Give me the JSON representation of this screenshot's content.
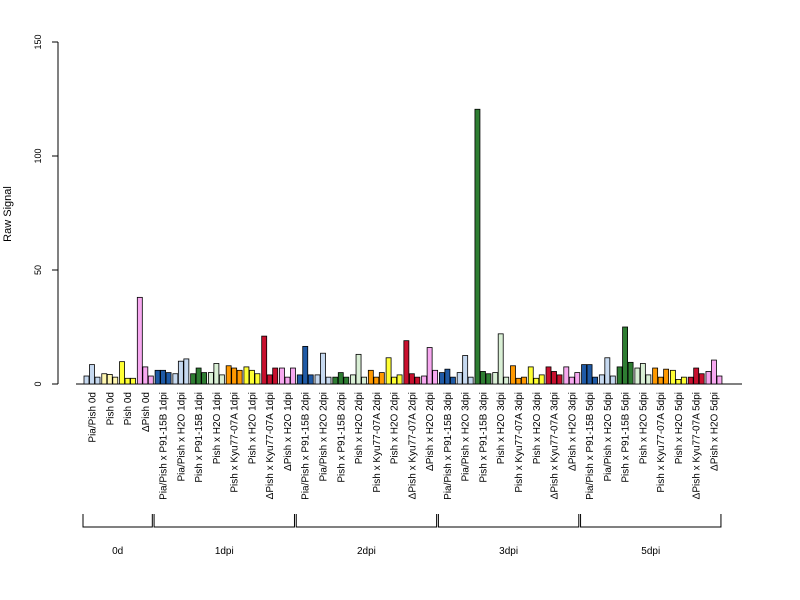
{
  "chart_data": {
    "type": "bar",
    "title": "",
    "xlabel": "",
    "ylabel": "Raw Signal",
    "ylim": [
      0,
      150
    ],
    "yticks": [
      0,
      50,
      100,
      150
    ],
    "grid": false,
    "categories": [
      "Pia/Pish 0d",
      "Pish 0d",
      "Pish 0d",
      "ΔPish 0d",
      "Pia/Pish x P91-15B 1dpi",
      "Pia/Pish x H2O 1dpi",
      "Pish x P91-15B 1dpi",
      "Pish x H2O 1dpi",
      "Pish x Kyu77-07A 1dpi",
      "Pish x H2O 1dpi",
      "ΔPish x Kyu77-07A 1dpi",
      "ΔPish x H2O 1dpi",
      "Pia/Pish x P91-15B 2dpi",
      "Pia/Pish x H2O 2dpi",
      "Pish x P91-15B 2dpi",
      "Pish x H2O 2dpi",
      "Pish x Kyu77-07A 2dpi",
      "Pish x H2O 2dpi",
      "ΔPish x Kyu77-07A 2dpi",
      "ΔPish x H2O 2dpi",
      "Pia/Pish x P91-15B 3dpi",
      "Pia/Pish x H2O 3dpi",
      "Pish x P91-15B 3dpi",
      "Pish x H2O 3dpi",
      "Pish x Kyu77-07A 3dpi",
      "Pish x H2O 3dpi",
      "ΔPish x Kyu77-07A 3dpi",
      "ΔPish x H2O 3dpi",
      "Pia/Pish x P91-15B 5dpi",
      "Pia/Pish x H2O 5dpi",
      "Pish x P91-15B 5dpi",
      "Pish x H2O 5dpi",
      "Pish x Kyu77-07A 5dpi",
      "Pish x H2O 5dpi",
      "ΔPish x Kyu77-07A 5dpi",
      "ΔPish x H2O 5dpi"
    ],
    "colors": [
      "#c6d9f0",
      "#fff7b0",
      "#ffff33",
      "#f7a8f0",
      "#1f5aa6",
      "#c6d9f0",
      "#2e7d32",
      "#d9efd5",
      "#ff9900",
      "#ffff33",
      "#c8102e",
      "#f7a8f0",
      "#1f5aa6",
      "#c6d9f0",
      "#2e7d32",
      "#d9efd5",
      "#ff9900",
      "#ffff33",
      "#c8102e",
      "#f7a8f0",
      "#1f5aa6",
      "#c6d9f0",
      "#2e7d32",
      "#d9efd5",
      "#ff9900",
      "#ffff33",
      "#c8102e",
      "#f7a8f0",
      "#1f5aa6",
      "#c6d9f0",
      "#2e7d32",
      "#d9efd5",
      "#ff9900",
      "#ffff33",
      "#c8102e",
      "#f7a8f0"
    ],
    "values": [
      [
        3.5,
        8.5,
        3.0
      ],
      [
        4.5,
        4.2,
        3.0
      ],
      [
        9.8,
        2.5,
        2.5
      ],
      [
        38.0,
        7.5,
        3.5
      ],
      [
        6.0,
        6.0,
        5.0
      ],
      [
        4.5,
        10.0,
        11.0
      ],
      [
        4.5,
        7.0,
        5.0
      ],
      [
        5.0,
        9.0,
        4.0
      ],
      [
        8.0,
        7.0,
        6.0
      ],
      [
        7.5,
        6.0,
        4.5
      ],
      [
        21.0,
        4.0,
        7.0
      ],
      [
        7.0,
        3.0,
        7.0
      ],
      [
        4.0,
        16.5,
        4.0
      ],
      [
        4.0,
        13.5,
        3.0
      ],
      [
        3.0,
        5.0,
        3.0
      ],
      [
        4.0,
        13.0,
        3.0
      ],
      [
        6.0,
        3.0,
        5.0
      ],
      [
        11.5,
        3.0,
        4.0
      ],
      [
        19.0,
        4.5,
        3.0
      ],
      [
        3.5,
        16.0,
        6.0
      ],
      [
        5.0,
        6.5,
        3.0
      ],
      [
        5.0,
        12.5,
        3.0
      ],
      [
        120.5,
        5.5,
        4.5
      ],
      [
        5.0,
        22.0,
        3.0
      ],
      [
        8.0,
        2.5,
        3.0
      ],
      [
        7.5,
        2.5,
        4.0
      ],
      [
        7.5,
        5.5,
        4.0
      ],
      [
        7.5,
        3.0,
        5.0
      ],
      [
        8.5,
        8.5,
        3.0
      ],
      [
        4.0,
        11.5,
        3.5
      ],
      [
        7.5,
        25.0,
        9.5
      ],
      [
        7.0,
        9.0,
        4.0
      ],
      [
        7.0,
        3.0,
        6.5
      ],
      [
        6.0,
        2.0,
        3.0
      ],
      [
        3.0,
        7.0,
        4.5
      ],
      [
        5.5,
        10.5,
        3.5
      ]
    ],
    "groups": [
      {
        "label": "0d",
        "start": 0,
        "end": 3
      },
      {
        "label": "1dpi",
        "start": 4,
        "end": 11
      },
      {
        "label": "2dpi",
        "start": 12,
        "end": 19
      },
      {
        "label": "3dpi",
        "start": 20,
        "end": 27
      },
      {
        "label": "5dpi",
        "start": 28,
        "end": 35
      }
    ]
  }
}
